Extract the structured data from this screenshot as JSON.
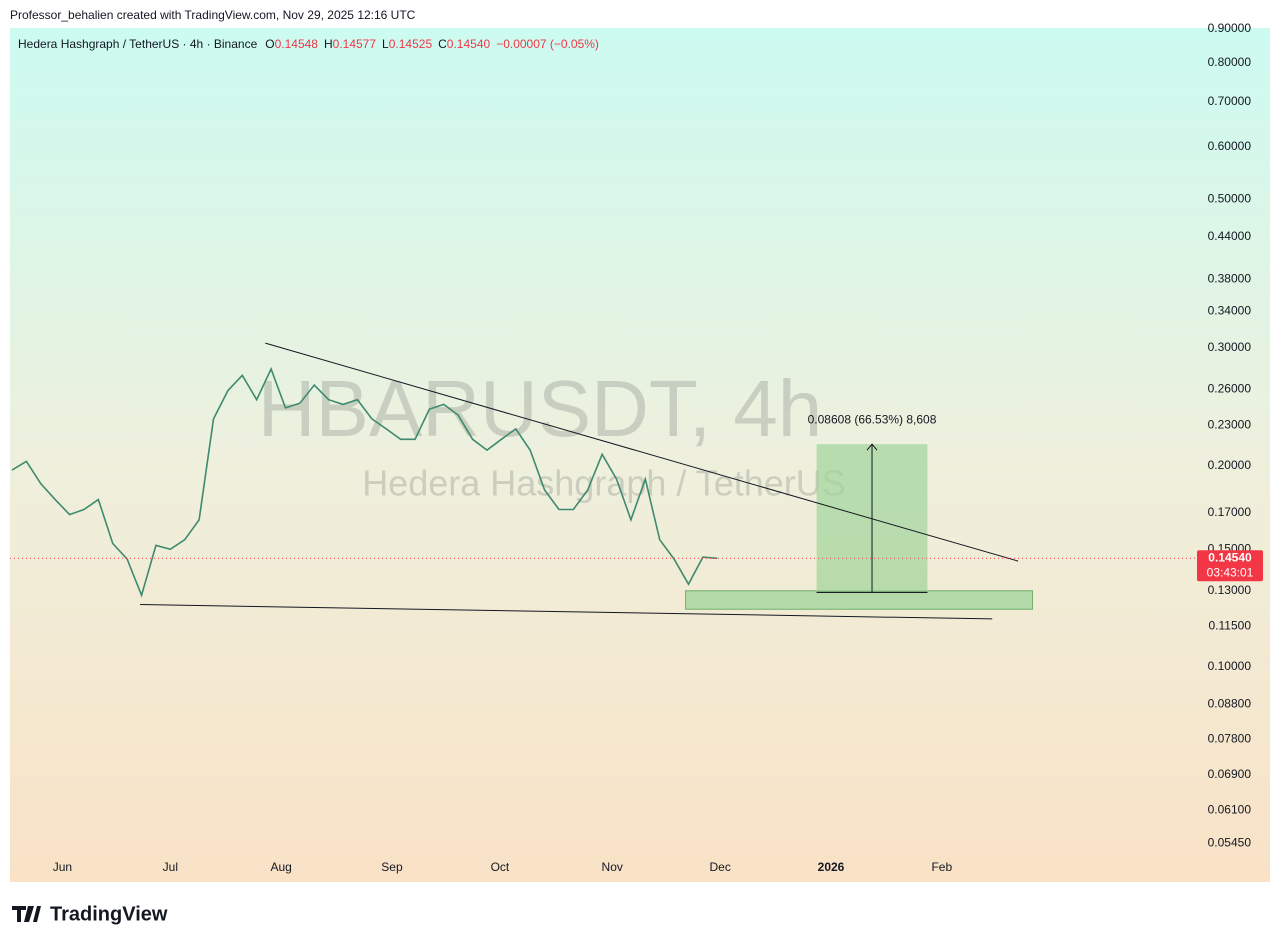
{
  "header": {
    "text": "Professor_behalien created with TradingView.com, Nov 29, 2025 12:16 UTC"
  },
  "chart_data": {
    "type": "line",
    "title": "Hedera Hashgraph / TetherUS · 4h · Binance",
    "ohlc": [
      {
        "label": "O",
        "value": "0.14548"
      },
      {
        "label": "H",
        "value": "0.14577"
      },
      {
        "label": "L",
        "value": "0.14525"
      },
      {
        "label": "C",
        "value": "0.14540"
      }
    ],
    "change": "−0.00007 (−0.05%)",
    "watermark": [
      "HBARUSDT, 4h",
      "Hedera Hashgraph / TetherUS"
    ],
    "log_scale": true,
    "ylim": [
      0.0477,
      0.9026
    ],
    "yticks": [
      {
        "value": 0.9,
        "label": "0.90000"
      },
      {
        "value": 0.8,
        "label": "0.80000"
      },
      {
        "value": 0.7,
        "label": "0.70000"
      },
      {
        "value": 0.6,
        "label": "0.60000"
      },
      {
        "value": 0.5,
        "label": "0.50000"
      },
      {
        "value": 0.44,
        "label": "0.44000"
      },
      {
        "value": 0.38,
        "label": "0.38000"
      },
      {
        "value": 0.34,
        "label": "0.34000"
      },
      {
        "value": 0.3,
        "label": "0.30000"
      },
      {
        "value": 0.26,
        "label": "0.26000"
      },
      {
        "value": 0.23,
        "label": "0.23000"
      },
      {
        "value": 0.2,
        "label": "0.20000"
      },
      {
        "value": 0.17,
        "label": "0.17000"
      },
      {
        "value": 0.15,
        "label": "0.15000"
      },
      {
        "value": 0.13,
        "label": "0.13000"
      },
      {
        "value": 0.115,
        "label": "0.11500"
      },
      {
        "value": 0.1,
        "label": "0.10000"
      },
      {
        "value": 0.088,
        "label": "0.08800"
      },
      {
        "value": 0.078,
        "label": "0.07800"
      },
      {
        "value": 0.069,
        "label": "0.06900"
      },
      {
        "value": 0.061,
        "label": "0.06100"
      },
      {
        "value": 0.0545,
        "label": "0.05450"
      }
    ],
    "xlim": [
      0,
      87.4
    ],
    "xticks": [
      {
        "value": 3.5,
        "label": "Jun"
      },
      {
        "value": 11,
        "label": "Jul"
      },
      {
        "value": 18.7,
        "label": "Aug"
      },
      {
        "value": 26.4,
        "label": "Sep"
      },
      {
        "value": 33.9,
        "label": "Oct"
      },
      {
        "value": 41.7,
        "label": "Nov"
      },
      {
        "value": 49.2,
        "label": "Dec"
      },
      {
        "value": 56.9,
        "label": "2026"
      },
      {
        "value": 64.6,
        "label": "Feb"
      }
    ],
    "series": [
      {
        "name": "HBARUSDT",
        "color": "#3d8a6e",
        "values": [
          0.197,
          0.203,
          0.188,
          0.178,
          0.169,
          0.172,
          0.178,
          0.153,
          0.145,
          0.128,
          0.152,
          0.15,
          0.155,
          0.166,
          0.235,
          0.259,
          0.273,
          0.251,
          0.279,
          0.244,
          0.248,
          0.264,
          0.251,
          0.247,
          0.251,
          0.235,
          0.227,
          0.219,
          0.219,
          0.243,
          0.247,
          0.238,
          0.219,
          0.211,
          0.219,
          0.227,
          0.211,
          0.184,
          0.172,
          0.172,
          0.184,
          0.208,
          0.191,
          0.166,
          0.191,
          0.155,
          0.145,
          0.133,
          0.146,
          0.1454
        ]
      }
    ],
    "last_price": {
      "value": 0.1454,
      "label": "0.14540",
      "countdown": "03:43:01"
    },
    "trendlines": [
      {
        "x": [
          17.6,
          69.9
        ],
        "y": [
          0.305,
          0.144
        ]
      },
      {
        "x": [
          8.9,
          68.1
        ],
        "y": [
          0.124,
          0.118
        ]
      }
    ],
    "zone": {
      "x": [
        46.8,
        70.9
      ],
      "y": [
        0.122,
        0.13
      ]
    },
    "measure": {
      "x": [
        55.9,
        63.6
      ],
      "y": [
        0.1293,
        0.2154
      ],
      "label": "0.08608 (66.53%) 8,608"
    }
  },
  "footer": {
    "logo": "TradingView"
  }
}
